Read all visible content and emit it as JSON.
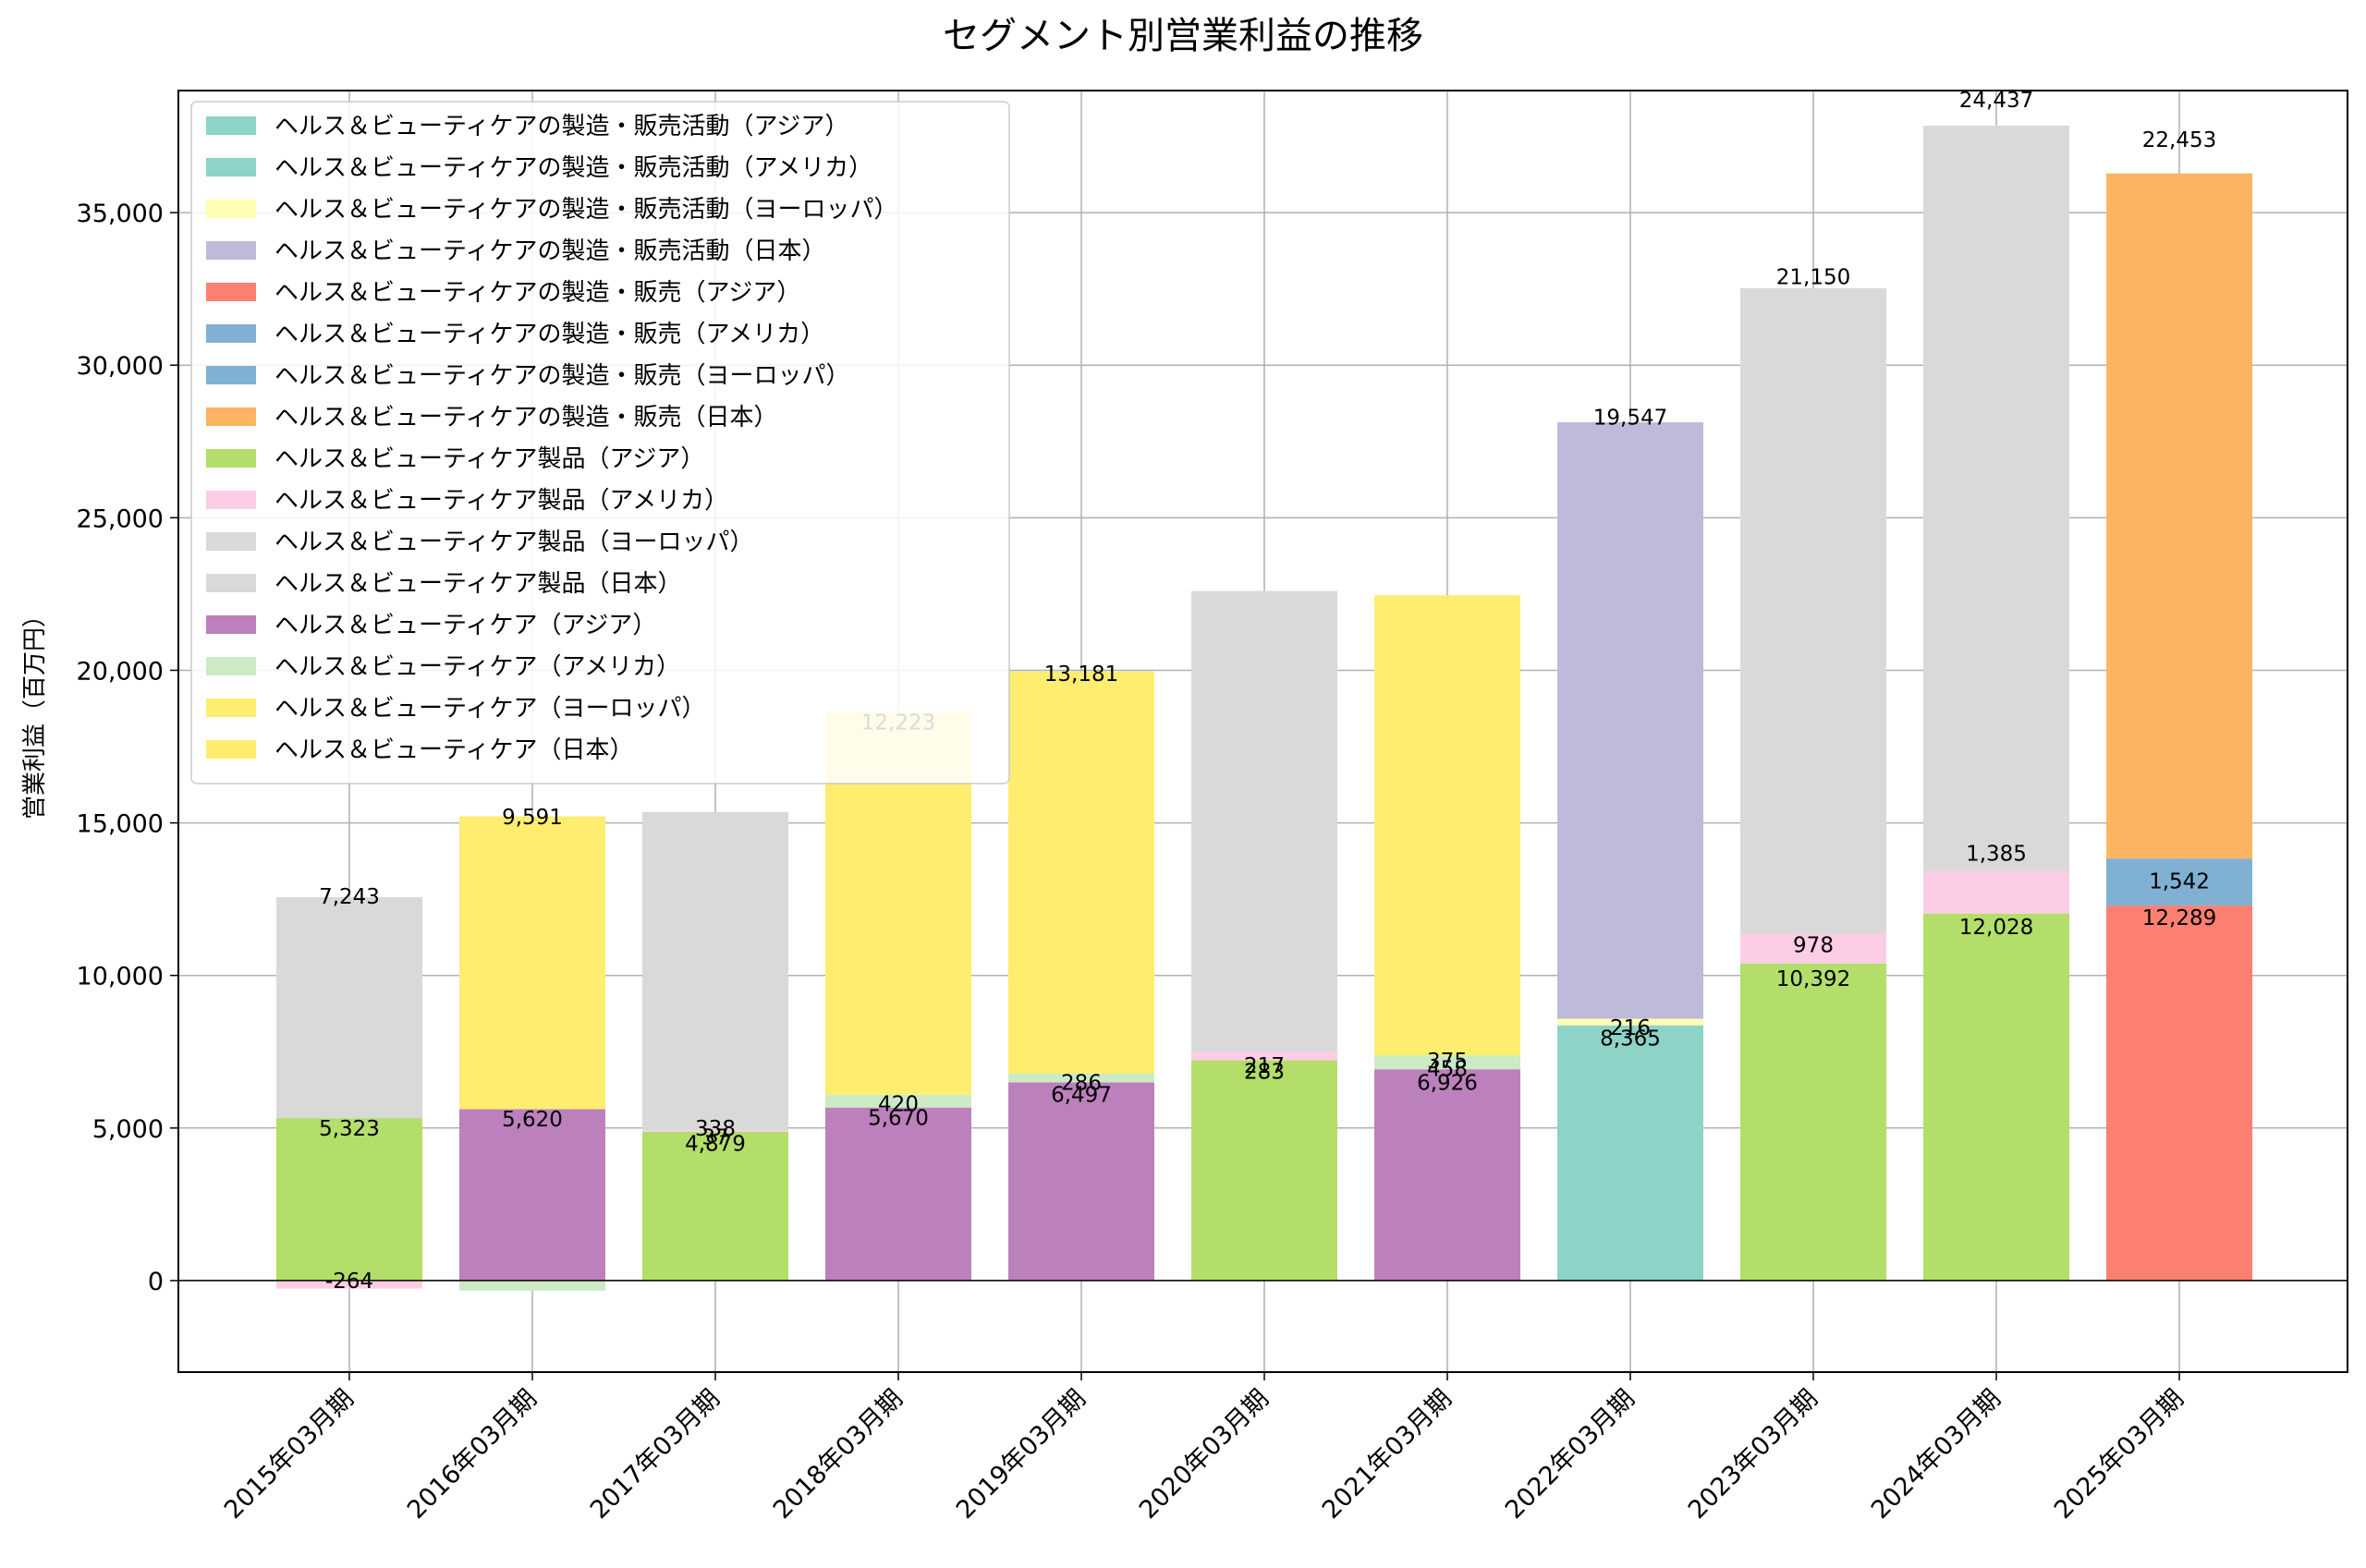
{
  "chart_data": {
    "type": "bar",
    "stacked": true,
    "title": "セグメント別営業利益の推移",
    "xlabel": "",
    "ylabel": "営業利益（百万円）",
    "ylim": [
      -3000,
      39000
    ],
    "yticks": [
      0,
      5000,
      10000,
      15000,
      20000,
      25000,
      30000,
      35000
    ],
    "ytick_labels": [
      "0",
      "5,000",
      "10,000",
      "15,000",
      "20,000",
      "25,000",
      "30,000",
      "35,000"
    ],
    "grid": true,
    "legend_position": "top-left",
    "categories": [
      "2015年03月期",
      "2016年03月期",
      "2017年03月期",
      "2018年03月期",
      "2019年03月期",
      "2020年03月期",
      "2021年03月期",
      "2022年03月期",
      "2023年03月期",
      "2024年03月期",
      "2025年03月期"
    ],
    "series": [
      {
        "name": "ヘルス＆ビューティケアの製造・販売活動（アジア）",
        "color": "#8dd3c7",
        "values": [
          null,
          null,
          null,
          null,
          null,
          null,
          null,
          8365,
          null,
          null,
          null
        ]
      },
      {
        "name": "ヘルス＆ビューティケアの製造・販売活動（アメリカ）",
        "color": "#8dd3c7",
        "values": [
          null,
          null,
          null,
          null,
          null,
          null,
          null,
          null,
          null,
          null,
          null
        ]
      },
      {
        "name": "ヘルス＆ビューティケアの製造・販売活動（ヨーロッパ）",
        "color": "#ffffb3",
        "values": [
          null,
          null,
          null,
          null,
          null,
          null,
          null,
          216,
          null,
          null,
          null
        ]
      },
      {
        "name": "ヘルス＆ビューティケアの製造・販売活動（日本）",
        "color": "#bebada",
        "values": [
          null,
          null,
          null,
          null,
          null,
          null,
          null,
          19547,
          null,
          null,
          null
        ]
      },
      {
        "name": "ヘルス＆ビューティケアの製造・販売（アジア）",
        "color": "#fb8072",
        "values": [
          null,
          null,
          null,
          null,
          null,
          null,
          null,
          null,
          null,
          null,
          12289
        ]
      },
      {
        "name": "ヘルス＆ビューティケアの製造・販売（アメリカ）",
        "color": "#80b1d3",
        "values": [
          null,
          null,
          null,
          null,
          null,
          null,
          null,
          null,
          null,
          null,
          null
        ]
      },
      {
        "name": "ヘルス＆ビューティケアの製造・販売（ヨーロッパ）",
        "color": "#80b1d3",
        "values": [
          null,
          null,
          null,
          null,
          null,
          null,
          null,
          null,
          null,
          null,
          1542
        ]
      },
      {
        "name": "ヘルス＆ビューティケアの製造・販売（日本）",
        "color": "#fdb462",
        "values": [
          null,
          null,
          null,
          null,
          null,
          null,
          null,
          null,
          null,
          null,
          22453
        ]
      },
      {
        "name": "ヘルス＆ビューティケア製品（アジア）",
        "color": "#b3de69",
        "values": [
          5323,
          null,
          4879,
          null,
          null,
          7217,
          null,
          null,
          10392,
          12028,
          null
        ]
      },
      {
        "name": "ヘルス＆ビューティケア製品（アメリカ）",
        "color": "#fccde5",
        "values": [
          -264,
          null,
          37,
          null,
          null,
          283,
          null,
          null,
          978,
          1385,
          null
        ]
      },
      {
        "name": "ヘルス＆ビューティケア製品（ヨーロッパ）",
        "color": "#d9d9d9",
        "values": [
          null,
          null,
          338,
          null,
          null,
          null,
          null,
          null,
          null,
          null,
          null
        ]
      },
      {
        "name": "ヘルス＆ビューティケア製品（日本）",
        "color": "#d9d9d9",
        "values": [
          7243,
          null,
          10100,
          null,
          null,
          15100,
          null,
          null,
          21150,
          24437,
          null
        ]
      },
      {
        "name": "ヘルス＆ビューティケア（アジア）",
        "color": "#bc80bd",
        "values": [
          null,
          5620,
          null,
          5670,
          6497,
          null,
          6926,
          null,
          null,
          null,
          null
        ]
      },
      {
        "name": "ヘルス＆ビューティケア（アメリカ）",
        "color": "#ccebc5",
        "values": [
          null,
          -330,
          null,
          420,
          286,
          null,
          458,
          null,
          null,
          null,
          null
        ]
      },
      {
        "name": "ヘルス＆ビューティケア（ヨーロッパ）",
        "color": "#ffed6f",
        "values": [
          null,
          null,
          null,
          330,
          null,
          null,
          375,
          null,
          null,
          null,
          null
        ]
      },
      {
        "name": "ヘルス＆ビューティケア（日本）",
        "color": "#ffed6f",
        "values": [
          null,
          9591,
          null,
          12223,
          13181,
          null,
          14700,
          null,
          null,
          null,
          null
        ]
      }
    ],
    "data_labels": [
      {
        "category": 0,
        "text": "-264",
        "y": 0
      },
      {
        "category": 0,
        "text": "5,323",
        "y": 5000
      },
      {
        "category": 0,
        "text": "7,243",
        "y": 12600
      },
      {
        "category": 1,
        "text": "5,620",
        "y": 5300
      },
      {
        "category": 1,
        "text": "9,591",
        "y": 15200
      },
      {
        "category": 2,
        "text": "4,879",
        "y": 4500
      },
      {
        "category": 2,
        "text": "37",
        "y": 4700
      },
      {
        "category": 2,
        "text": "338",
        "y": 5000
      },
      {
        "category": 3,
        "text": "5,670",
        "y": 5350
      },
      {
        "category": 3,
        "text": "420",
        "y": 5800
      },
      {
        "category": 3,
        "text": "12,223",
        "y": 18300
      },
      {
        "category": 4,
        "text": "6,497",
        "y": 6100
      },
      {
        "category": 4,
        "text": "286",
        "y": 6500
      },
      {
        "category": 4,
        "text": "13,181",
        "y": 19900
      },
      {
        "category": 5,
        "text": "283",
        "y": 6850
      },
      {
        "category": 5,
        "text": "217",
        "y": 7050
      },
      {
        "category": 6,
        "text": "6,926",
        "y": 6500
      },
      {
        "category": 6,
        "text": "458",
        "y": 6950
      },
      {
        "category": 6,
        "text": "375",
        "y": 7200
      },
      {
        "category": 7,
        "text": "8,365",
        "y": 7950
      },
      {
        "category": 7,
        "text": "216",
        "y": 8300
      },
      {
        "category": 7,
        "text": "19,547",
        "y": 28300
      },
      {
        "category": 8,
        "text": "10,392",
        "y": 9900
      },
      {
        "category": 8,
        "text": "978",
        "y": 11000
      },
      {
        "category": 8,
        "text": "21,150",
        "y": 32900
      },
      {
        "category": 9,
        "text": "12,028",
        "y": 11600
      },
      {
        "category": 9,
        "text": "1,385",
        "y": 14000
      },
      {
        "category": 9,
        "text": "24,437",
        "y": 38700
      },
      {
        "category": 10,
        "text": "12,289",
        "y": 11900
      },
      {
        "category": 10,
        "text": "1,542",
        "y": 13100
      },
      {
        "category": 10,
        "text": "22,453",
        "y": 37400
      }
    ]
  }
}
